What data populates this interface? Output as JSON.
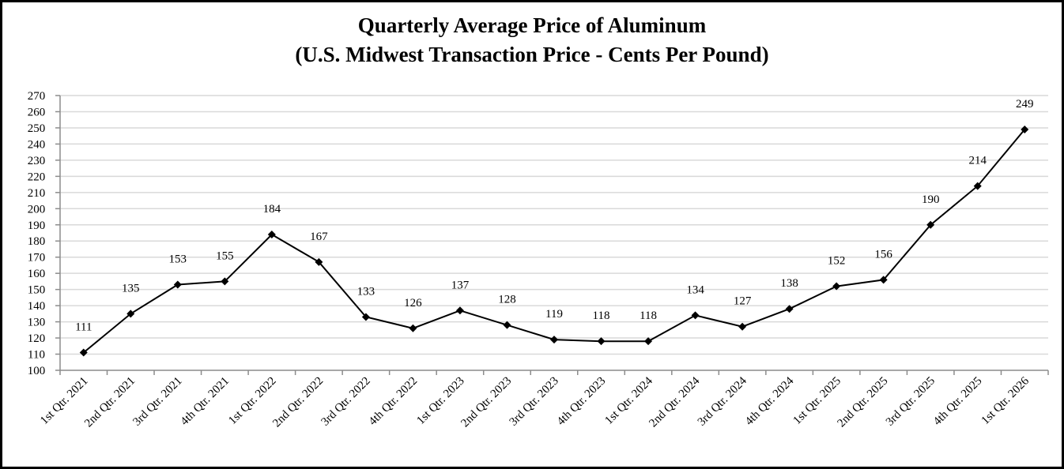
{
  "chart_data": {
    "type": "line",
    "title": "Quarterly Average Price of Aluminum",
    "subtitle": "(U.S. Midwest Transaction Price - Cents Per Pound)",
    "xlabel": "",
    "ylabel": "",
    "ylim": [
      100,
      270
    ],
    "ytick_step": 10,
    "grid": true,
    "legend": "none",
    "categories": [
      "1st Qtr. 2021",
      "2nd Qtr. 2021",
      "3rd Qtr. 2021",
      "4th Qtr. 2021",
      "1st Qtr. 2022",
      "2nd Qtr. 2022",
      "3rd Qtr. 2022",
      "4th Qtr. 2022",
      "1st Qtr. 2023",
      "2nd Qtr. 2023",
      "3rd Qtr. 2023",
      "4th Qtr. 2023",
      "1st Qtr. 2024",
      "2nd Qtr. 2024",
      "3rd Qtr. 2024",
      "4th Qtr. 2024",
      "1st Qtr. 2025",
      "2nd Qtr. 2025",
      "3rd Qtr. 2025",
      "4th Qtr. 2025",
      "1st Qtr. 2026"
    ],
    "series": [
      {
        "values": [
          111,
          135,
          153,
          155,
          184,
          167,
          133,
          126,
          137,
          128,
          119,
          118,
          118,
          134,
          127,
          138,
          152,
          156,
          190,
          214,
          249
        ]
      }
    ],
    "colors": {
      "line": "#000000",
      "marker": "#000000",
      "grid": "#d9d9d9",
      "axis": "#8c8c8c"
    }
  }
}
